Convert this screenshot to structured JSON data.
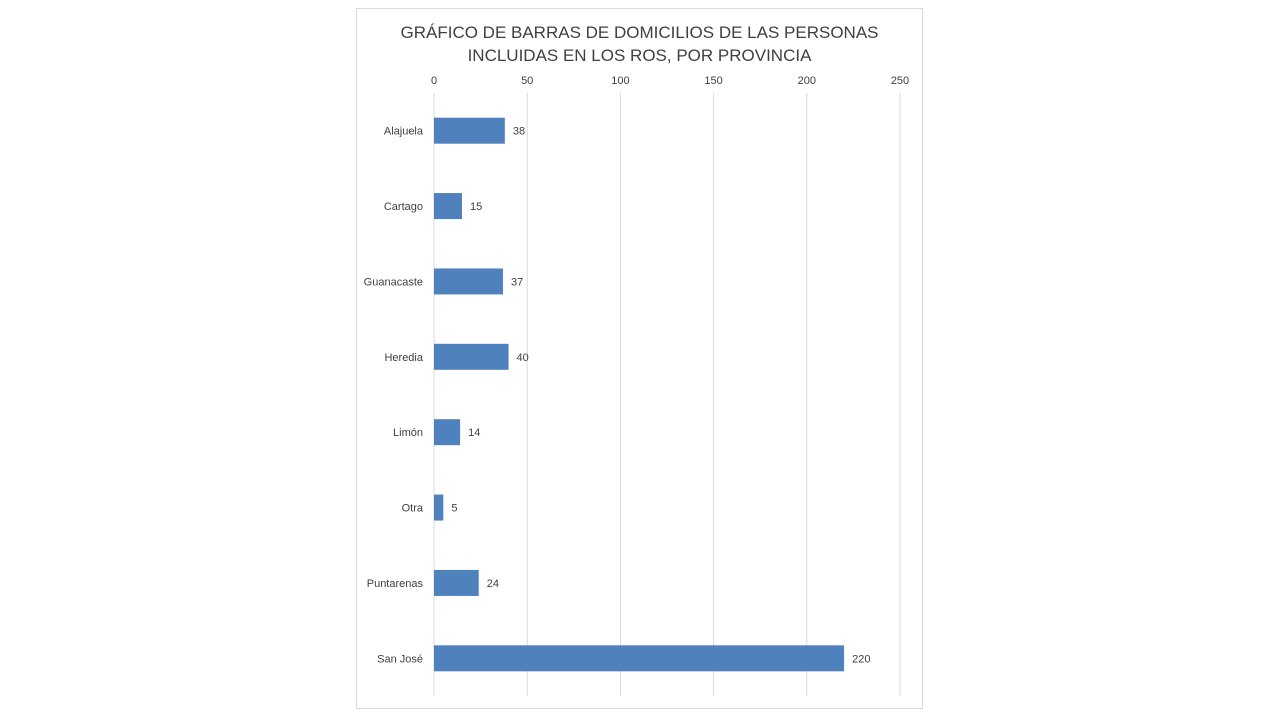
{
  "chart_data": {
    "type": "bar",
    "orientation": "horizontal",
    "title_lines": [
      "GRÁFICO DE BARRAS DE DOMICILIOS DE LAS PERSONAS",
      "INCLUIDAS EN LOS ROS, POR PROVINCIA"
    ],
    "categories": [
      "Alajuela",
      "Cartago",
      "Guanacaste",
      "Heredia",
      "Limón",
      "Otra",
      "Puntarenas",
      "San José"
    ],
    "values": [
      38,
      15,
      37,
      40,
      14,
      5,
      24,
      220
    ],
    "xlim": [
      0,
      250
    ],
    "x_ticks": [
      0,
      50,
      100,
      150,
      200,
      250
    ],
    "x_axis_position": "top",
    "grid": true,
    "data_labels": true,
    "bar_color": "#4f81bd",
    "grid_color": "#d9d9d9"
  }
}
